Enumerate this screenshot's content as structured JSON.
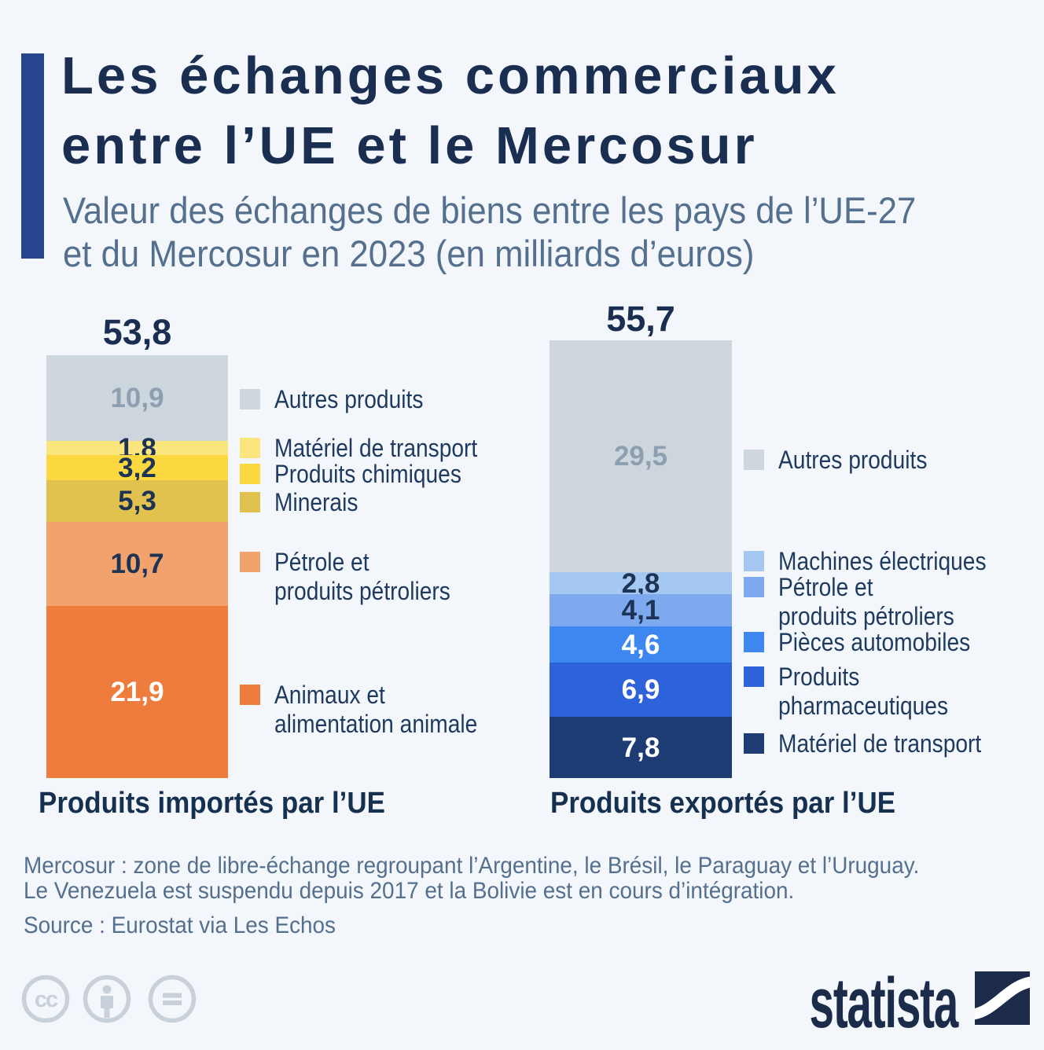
{
  "header": {
    "title_line1": "Les échanges commerciaux",
    "title_line2": "entre l’UE et le Mercosur",
    "subtitle_line1": "Valeur des échanges de biens entre les pays de l’UE-27",
    "subtitle_line2": "et du Mercosur en 2023 (en milliards d’euros)"
  },
  "colors": {
    "background": "#F3F6FA",
    "accent_bar": "#27448F",
    "title": "#1A2E52",
    "subtitle": "#54708E",
    "legend_text": "#1E3A5F",
    "axis_label": "#16304F",
    "muted_value": "#8E9FB0",
    "cc_icons": "#C8D0D9",
    "statista": "#1B2C4A"
  },
  "chart_data": [
    {
      "id": "imports",
      "type": "bar",
      "stacked": true,
      "title": "Produits importés par l’UE",
      "total": 53.8,
      "total_display": "53,8",
      "unit": "milliards d’euros",
      "segments": [
        {
          "key": "autres-produits",
          "label": "Autres produits",
          "value": 10.9,
          "display": "10,9",
          "color": "#CDD5DD",
          "label_color": "#8E9FB0"
        },
        {
          "key": "materiel-de-transport",
          "label": "Matériel de transport",
          "value": 1.8,
          "display": "1,8",
          "color": "#FBE57D",
          "label_color": "#1C3356"
        },
        {
          "key": "produits-chimiques",
          "label": "Produits chimiques",
          "value": 3.2,
          "display": "3,2",
          "color": "#FBD840",
          "label_color": "#1C3356"
        },
        {
          "key": "minerais",
          "label": "Minerais",
          "value": 5.3,
          "display": "5,3",
          "color": "#E2C24F",
          "label_color": "#1C3356"
        },
        {
          "key": "petrole",
          "label": "Pétrole et produits pétroliers",
          "value": 10.7,
          "display": "10,7",
          "color": "#F2A26C",
          "label_color": "#1C3356"
        },
        {
          "key": "animaux",
          "label": "Animaux et alimentation animale",
          "value": 21.9,
          "display": "21,9",
          "color": "#EE7D3D",
          "label_color": "#FFFFFF"
        }
      ],
      "legend": [
        {
          "line1": "Autres produits",
          "line2": "",
          "color": "#CDD5DD"
        },
        {
          "line1": "Matériel de transport",
          "line2": "",
          "color": "#FBE57D"
        },
        {
          "line1": "Produits chimiques",
          "line2": "",
          "color": "#FBD840"
        },
        {
          "line1": "Minerais",
          "line2": "",
          "color": "#E2C24F"
        },
        {
          "line1": "Pétrole et",
          "line2": "produits pétroliers",
          "color": "#F2A26C"
        },
        {
          "line1": "Animaux et",
          "line2": "alimentation animale",
          "color": "#EE7D3D"
        }
      ]
    },
    {
      "id": "exports",
      "type": "bar",
      "stacked": true,
      "title": "Produits exportés par l’UE",
      "total": 55.7,
      "total_display": "55,7",
      "unit": "milliards d’euros",
      "segments": [
        {
          "key": "autres-produits",
          "label": "Autres produits",
          "value": 29.5,
          "display": "29,5",
          "color": "#CDD5DD",
          "label_color": "#8E9FB0"
        },
        {
          "key": "machines-electriques",
          "label": "Machines électriques",
          "value": 2.8,
          "display": "2,8",
          "color": "#A5C8F3",
          "label_color": "#1C3356"
        },
        {
          "key": "petrole",
          "label": "Pétrole et produits pétroliers",
          "value": 4.1,
          "display": "4,1",
          "color": "#7FA9EF",
          "label_color": "#1C3356"
        },
        {
          "key": "pieces-automobiles",
          "label": "Pièces automobiles",
          "value": 4.6,
          "display": "4,6",
          "color": "#3F87F0",
          "label_color": "#FFFFFF"
        },
        {
          "key": "produits-pharmaceutiques",
          "label": "Produits pharmaceutiques",
          "value": 6.9,
          "display": "6,9",
          "color": "#2D62DA",
          "label_color": "#FFFFFF"
        },
        {
          "key": "materiel-de-transport",
          "label": "Matériel de transport",
          "value": 7.8,
          "display": "7,8",
          "color": "#1D3C74",
          "label_color": "#FFFFFF"
        }
      ],
      "legend": [
        {
          "line1": "Autres produits",
          "line2": "",
          "color": "#CDD5DD"
        },
        {
          "line1": "Machines électriques",
          "line2": "",
          "color": "#A5C8F3"
        },
        {
          "line1": "Pétrole et",
          "line2": "produits pétroliers",
          "color": "#7FA9EF"
        },
        {
          "line1": "Pièces automobiles",
          "line2": "",
          "color": "#3F87F0"
        },
        {
          "line1": "Produits",
          "line2": "pharmaceutiques",
          "color": "#2D62DA"
        },
        {
          "line1": "Matériel de transport",
          "line2": "",
          "color": "#1D3C74"
        }
      ]
    }
  ],
  "footer": {
    "note_line1": "Mercosur : zone de libre-échange regroupant l’Argentine, le Brésil, le Paraguay et l’Uruguay.",
    "note_line2": "Le Venezuela est suspendu depuis 2017 et la Bolivie est en cours d’intégration.",
    "source": "Source : Eurostat via Les Echos",
    "brand": "statista",
    "license_icons": [
      "cc",
      "attribution",
      "equals"
    ]
  }
}
